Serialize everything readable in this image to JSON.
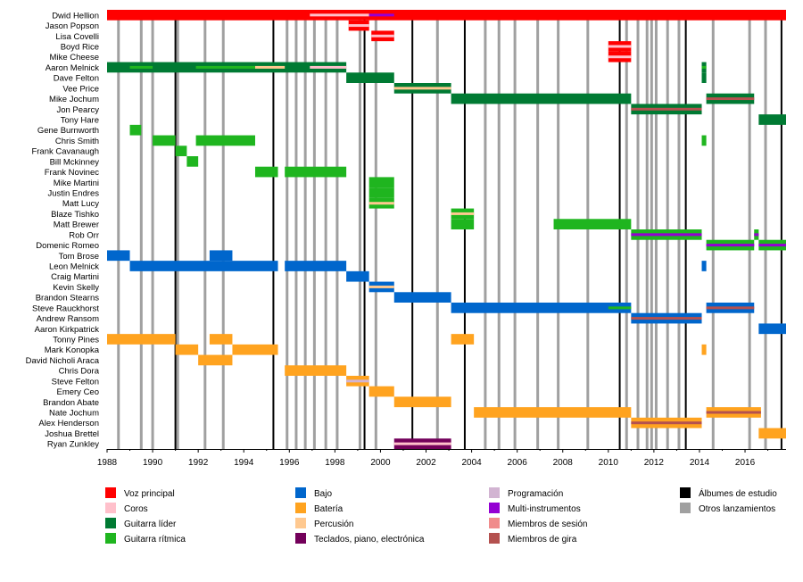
{
  "chart_data": {
    "type": "timeline",
    "x_range": [
      1988,
      2017.8
    ],
    "x_ticks": [
      "1988",
      "1990",
      "1992",
      "1994",
      "1996",
      "1998",
      "2000",
      "2002",
      "2004",
      "2006",
      "2008",
      "2010",
      "2012",
      "2014",
      "2016"
    ],
    "members": [
      {
        "name": "Dwid Hellion",
        "bars": [
          {
            "role": "vocals",
            "start": 1988,
            "end": 2017.8
          }
        ],
        "inner": [
          {
            "role": "backing",
            "start": 1996.9,
            "end": 1999.5
          },
          {
            "role": "multi",
            "start": 1999.5,
            "end": 2000.6
          }
        ]
      },
      {
        "name": "Jason Popson",
        "bars": [
          {
            "role": "vocals",
            "start": 1998.6,
            "end": 1999.5
          }
        ],
        "inner": [
          {
            "role": "backing",
            "start": 1998.6,
            "end": 1999.5
          }
        ]
      },
      {
        "name": "Lisa Covelli",
        "bars": [
          {
            "role": "vocals",
            "start": 1999.6,
            "end": 2000.6
          }
        ],
        "inner": [
          {
            "role": "backing",
            "start": 1999.6,
            "end": 2000.6
          }
        ]
      },
      {
        "name": "Boyd Rice",
        "bars": [
          {
            "role": "vocals",
            "start": 2010.0,
            "end": 2011.0
          }
        ],
        "inner": [
          {
            "role": "backing",
            "start": 2010.0,
            "end": 2011.0
          }
        ]
      },
      {
        "name": "Mike Cheese",
        "bars": [
          {
            "role": "vocals",
            "start": 2010.0,
            "end": 2011.0
          }
        ],
        "inner": [
          {
            "role": "backing",
            "start": 2010.0,
            "end": 2011.0
          }
        ]
      },
      {
        "name": "Aaron Melnick",
        "bars": [
          {
            "role": "lead",
            "start": 1988,
            "end": 1998.5
          },
          {
            "role": "lead",
            "start": 2014.1,
            "end": 2014.3
          }
        ],
        "inner": [
          {
            "role": "rhythm",
            "start": 1989.0,
            "end": 1990.0
          },
          {
            "role": "rhythm",
            "start": 1991.9,
            "end": 1994.5
          },
          {
            "role": "percussion",
            "start": 1994.5,
            "end": 1995.8
          },
          {
            "role": "backing",
            "start": 1996.9,
            "end": 1998.5
          },
          {
            "role": "rhythm",
            "start": 2014.1,
            "end": 2014.3
          }
        ]
      },
      {
        "name": "Dave Felton",
        "bars": [
          {
            "role": "lead",
            "start": 1998.5,
            "end": 2000.6
          },
          {
            "role": "lead",
            "start": 2014.1,
            "end": 2014.3
          }
        ],
        "inner": []
      },
      {
        "name": "Vee Price",
        "bars": [
          {
            "role": "lead",
            "start": 2000.6,
            "end": 2003.1
          }
        ],
        "inner": [
          {
            "role": "percussion",
            "start": 2000.6,
            "end": 2003.1
          }
        ]
      },
      {
        "name": "Mike Jochum",
        "bars": [
          {
            "role": "lead",
            "start": 2003.1,
            "end": 2011.0
          },
          {
            "role": "lead",
            "start": 2014.3,
            "end": 2016.4
          }
        ],
        "inner": [
          {
            "role": "touring",
            "start": 2014.3,
            "end": 2016.4
          }
        ]
      },
      {
        "name": "Jon Pearcy",
        "bars": [
          {
            "role": "lead",
            "start": 2011.0,
            "end": 2014.1
          }
        ],
        "inner": [
          {
            "role": "touring",
            "start": 2011.0,
            "end": 2014.1
          }
        ]
      },
      {
        "name": "Tony Hare",
        "bars": [
          {
            "role": "lead",
            "start": 2016.6,
            "end": 2017.8
          }
        ],
        "inner": []
      },
      {
        "name": "Gene Burnworth",
        "bars": [
          {
            "role": "rhythm",
            "start": 1989.0,
            "end": 1989.5
          }
        ],
        "inner": []
      },
      {
        "name": "Chris Smith",
        "bars": [
          {
            "role": "rhythm",
            "start": 1990.0,
            "end": 1991.0
          },
          {
            "role": "rhythm",
            "start": 1991.9,
            "end": 1994.5
          },
          {
            "role": "rhythm",
            "start": 2014.1,
            "end": 2014.3
          }
        ],
        "inner": []
      },
      {
        "name": "Frank Cavanaugh",
        "bars": [
          {
            "role": "rhythm",
            "start": 1991.0,
            "end": 1991.5
          }
        ],
        "inner": []
      },
      {
        "name": "Bill Mckinney",
        "bars": [
          {
            "role": "rhythm",
            "start": 1991.5,
            "end": 1992.0
          }
        ],
        "inner": []
      },
      {
        "name": "Frank Novinec",
        "bars": [
          {
            "role": "rhythm",
            "start": 1994.5,
            "end": 1995.5
          },
          {
            "role": "rhythm",
            "start": 1995.8,
            "end": 1998.5
          }
        ],
        "inner": []
      },
      {
        "name": "Mike Martini",
        "bars": [
          {
            "role": "rhythm",
            "start": 1999.5,
            "end": 2000.6
          }
        ],
        "inner": []
      },
      {
        "name": "Justin Endres",
        "bars": [
          {
            "role": "rhythm",
            "start": 1999.5,
            "end": 2000.6
          }
        ],
        "inner": []
      },
      {
        "name": "Matt Lucy",
        "bars": [
          {
            "role": "rhythm",
            "start": 1999.5,
            "end": 2000.6
          }
        ],
        "inner": [
          {
            "role": "percussion",
            "start": 1999.5,
            "end": 2000.6
          }
        ]
      },
      {
        "name": "Blaze Tishko",
        "bars": [
          {
            "role": "rhythm",
            "start": 2003.1,
            "end": 2004.1
          }
        ],
        "inner": [
          {
            "role": "percussion",
            "start": 2003.1,
            "end": 2004.1
          }
        ]
      },
      {
        "name": "Matt Brewer",
        "bars": [
          {
            "role": "rhythm",
            "start": 2003.1,
            "end": 2004.1
          },
          {
            "role": "rhythm",
            "start": 2007.6,
            "end": 2011.0
          }
        ],
        "inner": []
      },
      {
        "name": "Rob Orr",
        "bars": [
          {
            "role": "rhythm",
            "start": 2011.0,
            "end": 2014.1
          },
          {
            "role": "rhythm",
            "start": 2016.4,
            "end": 2016.6
          }
        ],
        "inner": [
          {
            "role": "multi",
            "start": 2011.0,
            "end": 2014.1
          },
          {
            "role": "multi",
            "start": 2016.4,
            "end": 2016.6
          }
        ]
      },
      {
        "name": "Domenic Romeo",
        "bars": [
          {
            "role": "rhythm",
            "start": 2014.3,
            "end": 2016.4
          },
          {
            "role": "rhythm",
            "start": 2016.6,
            "end": 2017.8
          }
        ],
        "inner": [
          {
            "role": "multi",
            "start": 2014.3,
            "end": 2016.4
          },
          {
            "role": "multi",
            "start": 2016.6,
            "end": 2017.8
          }
        ]
      },
      {
        "name": "Tom Brose",
        "bars": [
          {
            "role": "bass",
            "start": 1988,
            "end": 1989.0
          },
          {
            "role": "bass",
            "start": 1992.5,
            "end": 1993.5
          }
        ],
        "inner": []
      },
      {
        "name": "Leon Melnick",
        "bars": [
          {
            "role": "bass",
            "start": 1989.0,
            "end": 1995.5
          },
          {
            "role": "bass",
            "start": 1995.8,
            "end": 1998.5
          },
          {
            "role": "bass",
            "start": 2014.1,
            "end": 2014.3
          }
        ],
        "inner": []
      },
      {
        "name": "Craig Martini",
        "bars": [
          {
            "role": "bass",
            "start": 1998.5,
            "end": 1999.5
          }
        ],
        "inner": []
      },
      {
        "name": "Kevin Skelly",
        "bars": [
          {
            "role": "bass",
            "start": 1999.5,
            "end": 2000.6
          }
        ],
        "inner": [
          {
            "role": "percussion",
            "start": 1999.5,
            "end": 2000.6
          }
        ]
      },
      {
        "name": "Brandon Stearns",
        "bars": [
          {
            "role": "bass",
            "start": 2000.6,
            "end": 2003.1
          }
        ],
        "inner": []
      },
      {
        "name": "Steve Rauckhorst",
        "bars": [
          {
            "role": "bass",
            "start": 2003.1,
            "end": 2011.0
          },
          {
            "role": "bass",
            "start": 2014.3,
            "end": 2016.4
          }
        ],
        "inner": [
          {
            "role": "rhythm",
            "start": 2010.0,
            "end": 2011.0
          },
          {
            "role": "touring",
            "start": 2014.3,
            "end": 2016.4
          }
        ]
      },
      {
        "name": "Andrew Ransom",
        "bars": [
          {
            "role": "bass",
            "start": 2011.0,
            "end": 2014.1
          }
        ],
        "inner": [
          {
            "role": "touring",
            "start": 2011.0,
            "end": 2014.1
          }
        ]
      },
      {
        "name": "Aaron Kirkpatrick",
        "bars": [
          {
            "role": "bass",
            "start": 2016.6,
            "end": 2017.8
          }
        ],
        "inner": []
      },
      {
        "name": "Tonny Pines",
        "bars": [
          {
            "role": "drums",
            "start": 1988,
            "end": 1991.0
          },
          {
            "role": "drums",
            "start": 1992.5,
            "end": 1993.5
          },
          {
            "role": "drums",
            "start": 2003.1,
            "end": 2004.1
          }
        ],
        "inner": []
      },
      {
        "name": "Mark Konopka",
        "bars": [
          {
            "role": "drums",
            "start": 1991.0,
            "end": 1992.0
          },
          {
            "role": "drums",
            "start": 1993.5,
            "end": 1995.5
          },
          {
            "role": "drums",
            "start": 2014.1,
            "end": 2014.3
          }
        ],
        "inner": []
      },
      {
        "name": "David Nicholi Araca",
        "bars": [
          {
            "role": "drums",
            "start": 1992.0,
            "end": 1993.5
          }
        ],
        "inner": []
      },
      {
        "name": "Chris Dora",
        "bars": [
          {
            "role": "drums",
            "start": 1995.8,
            "end": 1998.5
          }
        ],
        "inner": []
      },
      {
        "name": "Steve Felton",
        "bars": [
          {
            "role": "drums",
            "start": 1998.5,
            "end": 1999.5
          }
        ],
        "inner": [
          {
            "role": "programming",
            "start": 1998.5,
            "end": 1999.5
          }
        ]
      },
      {
        "name": "Emery Ceo",
        "bars": [
          {
            "role": "drums",
            "start": 1999.5,
            "end": 2000.6
          }
        ],
        "inner": []
      },
      {
        "name": "Brandon Abate",
        "bars": [
          {
            "role": "drums",
            "start": 2000.6,
            "end": 2003.1
          }
        ],
        "inner": []
      },
      {
        "name": "Nate Jochum",
        "bars": [
          {
            "role": "drums",
            "start": 2004.1,
            "end": 2011.0
          },
          {
            "role": "drums",
            "start": 2014.3,
            "end": 2016.7
          }
        ],
        "inner": [
          {
            "role": "touring",
            "start": 2014.3,
            "end": 2016.7
          }
        ]
      },
      {
        "name": "Alex Henderson",
        "bars": [
          {
            "role": "drums",
            "start": 2011.0,
            "end": 2014.1
          }
        ],
        "inner": [
          {
            "role": "touring",
            "start": 2011.0,
            "end": 2014.1
          }
        ]
      },
      {
        "name": "Joshua Brettel",
        "bars": [
          {
            "role": "drums",
            "start": 2016.6,
            "end": 2017.8
          }
        ],
        "inner": []
      },
      {
        "name": "Ryan Zunkley",
        "bars": [
          {
            "role": "keys",
            "start": 2000.6,
            "end": 2003.1
          }
        ],
        "inner": [
          {
            "role": "backing",
            "start": 2000.6,
            "end": 2003.1
          }
        ]
      }
    ],
    "studio_albums": [
      1991.0,
      1995.3,
      1999.3,
      2001.4,
      2003.7,
      2010.5,
      2013.4,
      2017.6
    ],
    "other_releases": [
      1988.5,
      1989.5,
      1990.0,
      1991.1,
      1992.3,
      1993.1,
      1995.9,
      1996.3,
      1996.7,
      1997.1,
      1997.6,
      1998.1,
      1999.1,
      1999.8,
      2002.5,
      2004.6,
      2005.2,
      2005.9,
      2006.9,
      2007.8,
      2009.1,
      2010.8,
      2011.3,
      2011.7,
      2011.9,
      2012.1,
      2012.6,
      2013.1,
      2014.6,
      2016.2,
      2016.9
    ],
    "legend": [
      {
        "key": "vocals",
        "label": "Voz principal",
        "color": "#ff0000"
      },
      {
        "key": "backing",
        "label": "Coros",
        "color": "#ffc0cb"
      },
      {
        "key": "lead",
        "label": "Guitarra líder",
        "color": "#007a33"
      },
      {
        "key": "rhythm",
        "label": "Guitarra rítmica",
        "color": "#1fb51f"
      },
      {
        "key": "bass",
        "label": "Bajo",
        "color": "#0066cc"
      },
      {
        "key": "drums",
        "label": "Batería",
        "color": "#ffa31f"
      },
      {
        "key": "percussion",
        "label": "Percusión",
        "color": "#ffc990"
      },
      {
        "key": "keys",
        "label": "Teclados, piano, electrónica",
        "color": "#73005a"
      },
      {
        "key": "programming",
        "label": "Programación",
        "color": "#d2b4d2"
      },
      {
        "key": "multi",
        "label": "Multi-instrumentos",
        "color": "#9400d3"
      },
      {
        "key": "session",
        "label": "Miembros de sesión",
        "color": "#f08c8c"
      },
      {
        "key": "touring",
        "label": "Miembros de gira",
        "color": "#b4514f"
      },
      {
        "key": "studio",
        "label": "Álbumes de estudio",
        "color": "#000000"
      },
      {
        "key": "other",
        "label": "Otros lanzamientos",
        "color": "#a0a0a0"
      }
    ]
  }
}
